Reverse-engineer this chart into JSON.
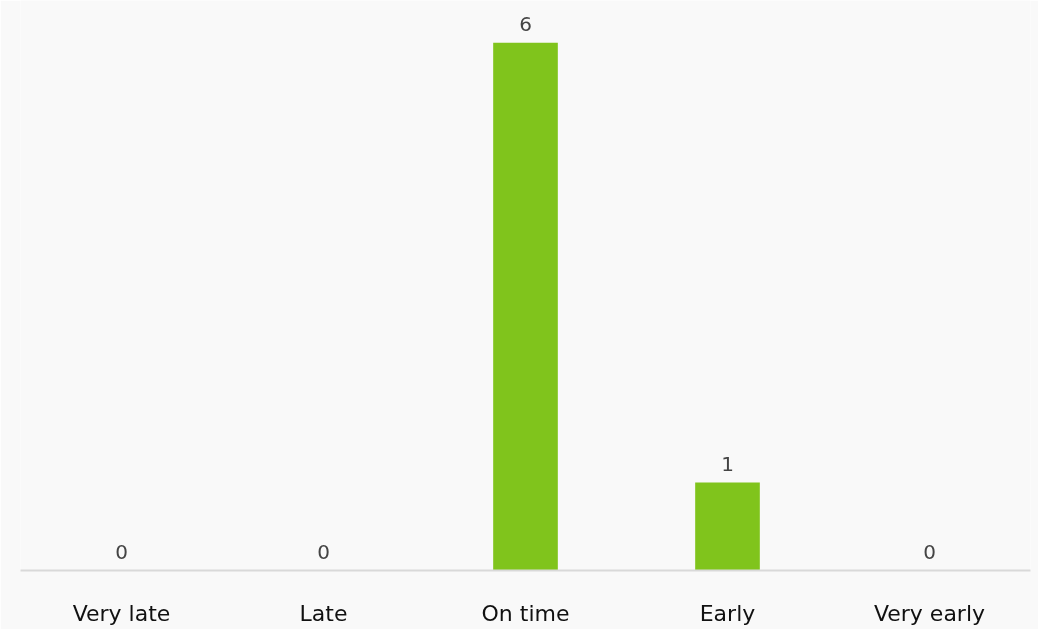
{
  "chart_data": {
    "type": "bar",
    "categories": [
      "Very late",
      "Late",
      "On time",
      "Early",
      "Very early"
    ],
    "values": [
      0,
      0,
      6,
      1,
      0
    ],
    "color": "#80c41c",
    "data_labels": true
  }
}
